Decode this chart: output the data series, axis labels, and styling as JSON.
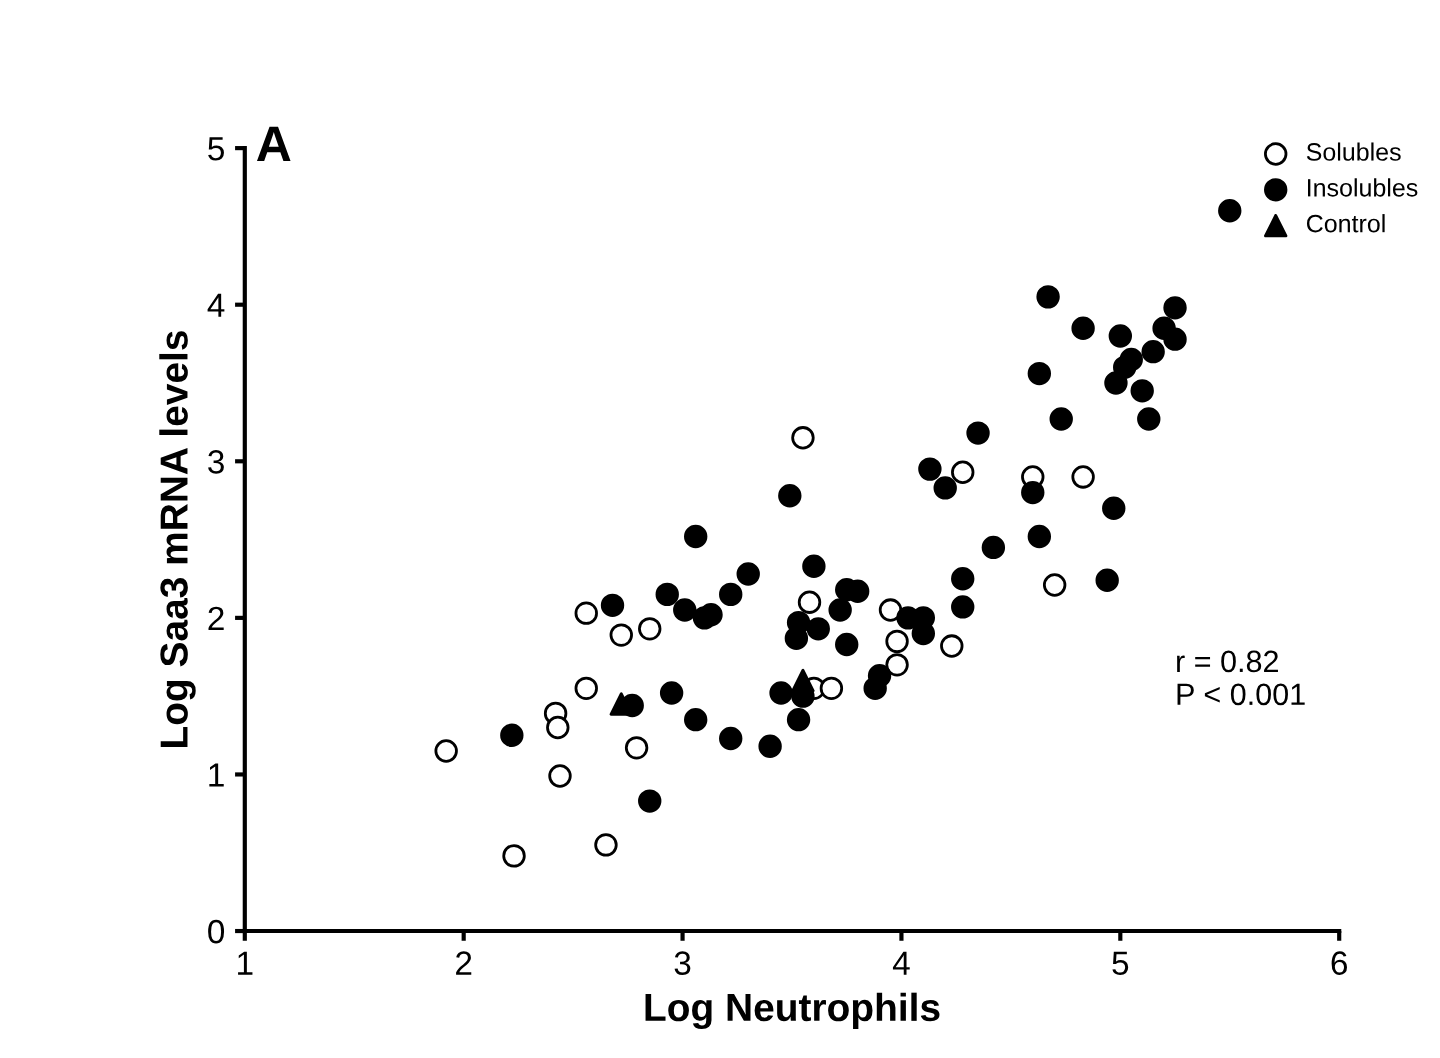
{
  "chart_data": {
    "type": "scatter",
    "xlabel": "Log Neutrophils",
    "ylabel": "Log Saa3 mRNA levels",
    "xlim": [
      1,
      6
    ],
    "ylim": [
      0,
      5
    ],
    "xticks": [
      1,
      2,
      3,
      4,
      5,
      6
    ],
    "yticks": [
      0,
      1,
      2,
      3,
      4,
      5
    ],
    "grid": false,
    "legend": "top right",
    "annotations": [
      "A",
      "r = 0.82\nP < 0.001"
    ],
    "series": [
      {
        "name": "Solubles",
        "color": "#ffffff",
        "marker": "circle",
        "x": [
          1.92,
          2.23,
          2.42,
          2.43,
          2.44,
          2.56,
          2.56,
          2.72,
          2.79,
          2.85,
          2.65,
          3.55,
          3.58,
          3.6,
          3.68,
          3.95,
          3.98,
          3.98,
          4.23,
          4.28,
          4.6,
          4.83,
          4.7
        ],
        "values": [
          1.15,
          0.48,
          1.39,
          1.3,
          0.99,
          2.03,
          1.55,
          1.89,
          1.17,
          1.93,
          0.55,
          3.15,
          2.1,
          1.55,
          1.55,
          2.05,
          1.7,
          1.85,
          1.82,
          2.93,
          2.9,
          2.9,
          2.21
        ]
      },
      {
        "name": "Insolubles",
        "color": "#000000",
        "marker": "circle",
        "x": [
          2.22,
          2.68,
          2.77,
          2.85,
          2.93,
          2.95,
          3.01,
          3.06,
          3.1,
          3.13,
          3.22,
          3.3,
          3.06,
          3.22,
          3.4,
          3.49,
          3.53,
          3.45,
          3.53,
          3.52,
          3.55,
          3.6,
          3.62,
          3.75,
          3.72,
          3.75,
          3.8,
          3.9,
          3.88,
          4.03,
          4.1,
          4.1,
          4.13,
          4.2,
          4.28,
          4.28,
          4.35,
          4.42,
          4.6,
          4.63,
          4.63,
          4.67,
          4.73,
          4.83,
          4.97,
          4.94,
          4.98,
          5.0,
          5.02,
          5.05,
          5.1,
          5.13,
          5.15,
          5.2,
          5.25,
          5.25,
          5.5
        ],
        "values": [
          1.25,
          2.08,
          1.44,
          0.83,
          2.15,
          1.52,
          2.05,
          2.52,
          2.0,
          2.02,
          2.15,
          2.28,
          1.35,
          1.23,
          1.18,
          2.78,
          1.35,
          1.52,
          1.97,
          1.87,
          1.5,
          2.33,
          1.93,
          2.18,
          2.05,
          1.83,
          2.17,
          1.63,
          1.55,
          2.0,
          1.9,
          2.0,
          2.95,
          2.83,
          2.25,
          2.07,
          3.18,
          2.45,
          2.8,
          2.52,
          3.56,
          4.05,
          3.27,
          3.85,
          2.7,
          2.24,
          3.5,
          3.8,
          3.6,
          3.65,
          3.45,
          3.27,
          3.7,
          3.85,
          3.98,
          3.78,
          4.6
        ]
      },
      {
        "name": "Control",
        "color": "#000000",
        "marker": "triangle",
        "x": [
          2.72,
          3.55
        ],
        "values": [
          1.45,
          1.6
        ]
      }
    ]
  }
}
